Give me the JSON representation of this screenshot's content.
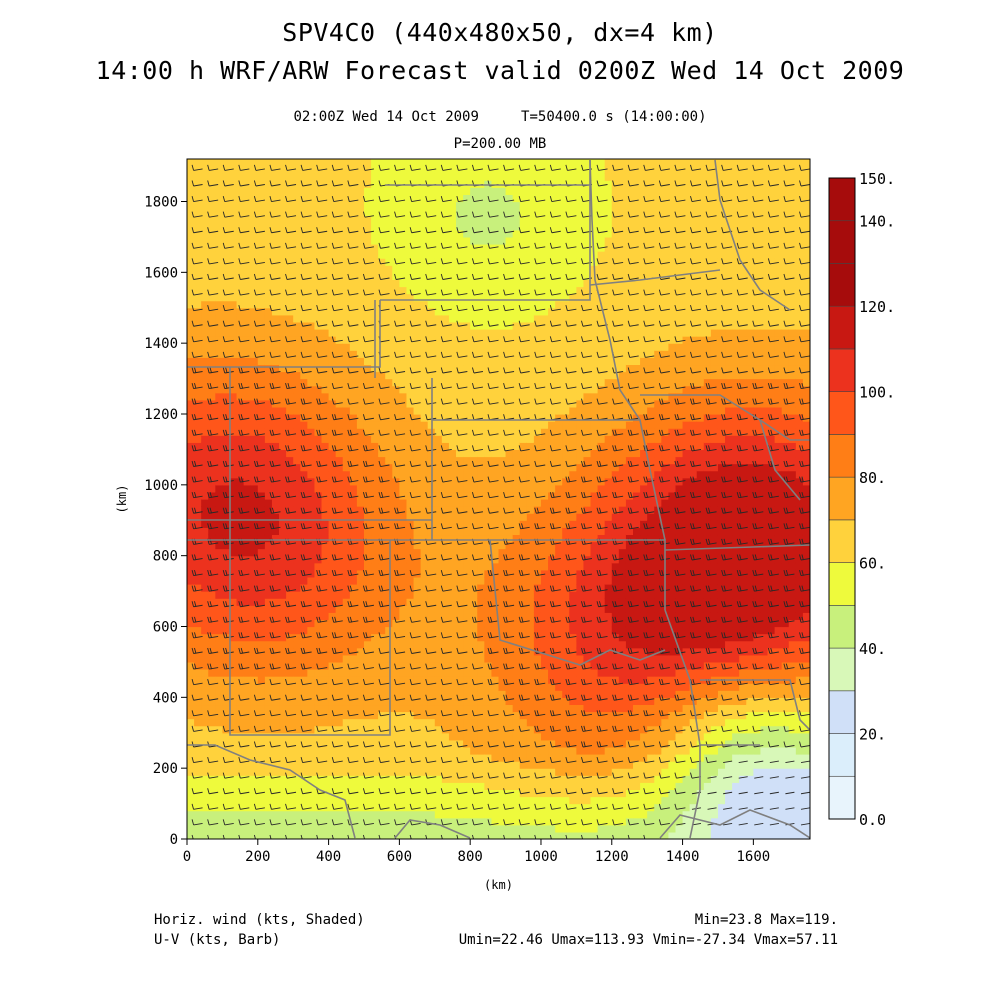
{
  "header": {
    "title_line1": "SPV4C0 (440x480x50, dx=4 km)",
    "title_line2": "14:00 h WRF/ARW Forecast valid 0200Z Wed 14 Oct 2009",
    "valid_time": "02:00Z Wed 14 Oct 2009     T=50400.0 s (14:00:00)",
    "level": "P=200.00 MB"
  },
  "footer": {
    "field1": "Horiz. wind (kts, Shaded)",
    "field2": "U-V (kts, Barb)",
    "stats1": "Min=23.8 Max=119.",
    "stats2": "Umin=22.46 Umax=113.93 Vmin=-27.34 Vmax=57.11"
  },
  "colors": {
    "colorbar": [
      "#e8f4fc",
      "#dbeefb",
      "#d0e0f8",
      "#d8f8b8",
      "#c8f07c",
      "#eefa3c",
      "#ffd23c",
      "#ffa522",
      "#ff7e16",
      "#ff561a",
      "#ec321e",
      "#c81812",
      "#a60c0c"
    ],
    "state_borders": "#808080",
    "barbs": "#282828"
  },
  "chart_data": {
    "type": "heatmap",
    "title": "SPV4C0 (440x480x50, dx=4 km)",
    "xlabel": "(km)",
    "ylabel": "(km)",
    "xlim": [
      0,
      1760
    ],
    "ylim": [
      0,
      1920
    ],
    "x_ticks": [
      0,
      200,
      400,
      600,
      800,
      1000,
      1200,
      1400,
      1600
    ],
    "y_ticks": [
      0,
      200,
      400,
      600,
      800,
      1000,
      1200,
      1400,
      1600,
      1800
    ],
    "colorbar": {
      "levels": [
        0,
        10,
        20,
        30,
        40,
        50,
        60,
        70,
        80,
        90,
        100,
        110,
        120,
        130,
        140,
        150
      ],
      "labels": [
        "0.0",
        "20.",
        "40.",
        "60.",
        "80.",
        "100.",
        "120.",
        "140.",
        "150."
      ],
      "label_values": [
        0,
        20,
        40,
        60,
        80,
        100,
        120,
        140,
        150
      ]
    },
    "field": "Horizontal wind speed (kts) at 200 mb",
    "min": 23.8,
    "max": 119,
    "wind_maxima_approx": [
      {
        "x": 60,
        "y": 1000,
        "speed": 110
      },
      {
        "x": 250,
        "y": 800,
        "speed": 105
      },
      {
        "x": 1550,
        "y": 750,
        "speed": 115
      },
      {
        "x": 1650,
        "y": 900,
        "speed": 113
      },
      {
        "x": 1200,
        "y": 550,
        "speed": 108
      }
    ],
    "wind_minima_approx": [
      {
        "x": 1560,
        "y": 260,
        "speed": 25
      },
      {
        "x": 1760,
        "y": 60,
        "speed": 30
      },
      {
        "x": 850,
        "y": 1760,
        "speed": 45
      }
    ]
  }
}
